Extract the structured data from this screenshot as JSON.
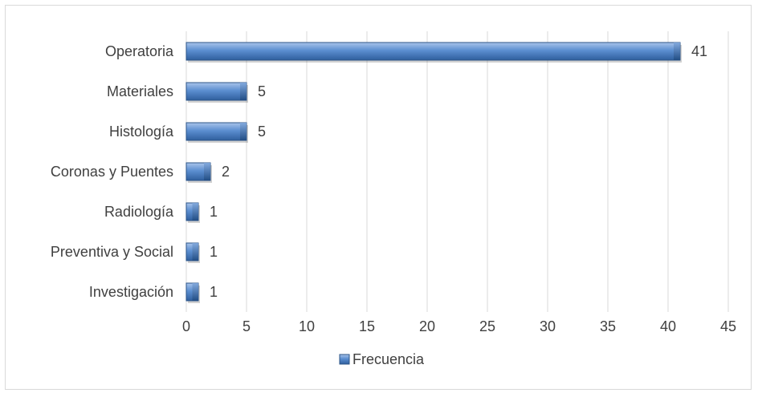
{
  "chart_data": {
    "type": "bar",
    "orientation": "horizontal",
    "categories": [
      "Operatoria",
      "Materiales",
      "Histología",
      "Coronas y Puentes",
      "Radiología",
      "Preventiva y Social",
      "Investigación"
    ],
    "series": [
      {
        "name": "Frecuencia",
        "values": [
          41,
          5,
          5,
          2,
          1,
          1,
          1
        ],
        "color": "#4f81bd"
      }
    ],
    "xlim": [
      0,
      45
    ],
    "xticks": [
      0,
      5,
      10,
      15,
      20,
      25,
      30,
      35,
      40,
      45
    ],
    "grid": true,
    "legend_position": "bottom",
    "data_labels": true
  }
}
